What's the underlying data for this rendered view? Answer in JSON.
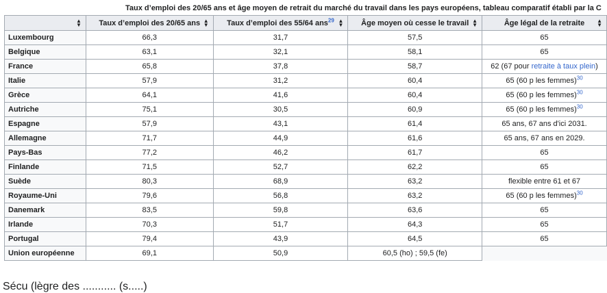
{
  "caption": "Taux d’emploi des 20/65 ans et âge moyen de retrait du marché du travail dans les pays européens, tableau comparatif établi par la C",
  "headers": {
    "col1": "Taux d’emploi des 20/65 ans",
    "col2": "Taux d’emploi des 55/64 ans",
    "col2_ref": "29",
    "col3": "Âge moyen où cesse le travail",
    "col4": "Âge légal de la retraite"
  },
  "rows": [
    {
      "country": "Luxembourg",
      "emp2065": "66,3",
      "emp5564": "31,7",
      "avg_age": "57,5",
      "legal": "65"
    },
    {
      "country": "Belgique",
      "emp2065": "63,1",
      "emp5564": "32,1",
      "avg_age": "58,1",
      "legal": "65"
    },
    {
      "country": "France",
      "emp2065": "65,8",
      "emp5564": "37,8",
      "avg_age": "58,7",
      "legal_pre": "62 (67 pour ",
      "legal_link": "retraite à taux plein",
      "legal_post": ")"
    },
    {
      "country": "Italie",
      "emp2065": "57,9",
      "emp5564": "31,2",
      "avg_age": "60,4",
      "legal": "65 (60 p les femmes)",
      "legal_ref": "30"
    },
    {
      "country": "Grèce",
      "emp2065": "64,1",
      "emp5564": "41,6",
      "avg_age": "60,4",
      "legal": "65 (60 p les femmes)",
      "legal_ref": "30"
    },
    {
      "country": "Autriche",
      "emp2065": "75,1",
      "emp5564": "30,5",
      "avg_age": "60,9",
      "legal": "65 (60 p les femmes)",
      "legal_ref": "30"
    },
    {
      "country": "Espagne",
      "emp2065": "57,9",
      "emp5564": "43,1",
      "avg_age": "61,4",
      "legal": "65 ans, 67 ans d'ici 2031."
    },
    {
      "country": "Allemagne",
      "emp2065": "71,7",
      "emp5564": "44,9",
      "avg_age": "61,6",
      "legal": "65 ans, 67 ans en 2029."
    },
    {
      "country": "Pays-Bas",
      "emp2065": "77,2",
      "emp5564": "46,2",
      "avg_age": "61,7",
      "legal": "65"
    },
    {
      "country": "Finlande",
      "emp2065": "71,5",
      "emp5564": "52,7",
      "avg_age": "62,2",
      "legal": "65"
    },
    {
      "country": "Suède",
      "emp2065": "80,3",
      "emp5564": "68,9",
      "avg_age": "63,2",
      "legal": "flexible entre 61 et 67"
    },
    {
      "country": "Royaume-Uni",
      "emp2065": "79,6",
      "emp5564": "56,8",
      "avg_age": "63,2",
      "legal": "65 (60 p les femmes)",
      "legal_ref": "30"
    },
    {
      "country": "Danemark",
      "emp2065": "83,5",
      "emp5564": "59,8",
      "avg_age": "63,6",
      "legal": "65"
    },
    {
      "country": "Irlande",
      "emp2065": "70,3",
      "emp5564": "51,7",
      "avg_age": "64,3",
      "legal": "65"
    },
    {
      "country": "Portugal",
      "emp2065": "79,4",
      "emp5564": "43,9",
      "avg_age": "64,5",
      "legal": "65"
    },
    {
      "country": "Union européenne",
      "emp2065": "69,1",
      "emp5564": "50,9",
      "avg_age": "60,5 (ho) ; 59,5 (fe)",
      "legal": ""
    }
  ],
  "footer_text": "Sécu (lègre des ........... (s.....)"
}
